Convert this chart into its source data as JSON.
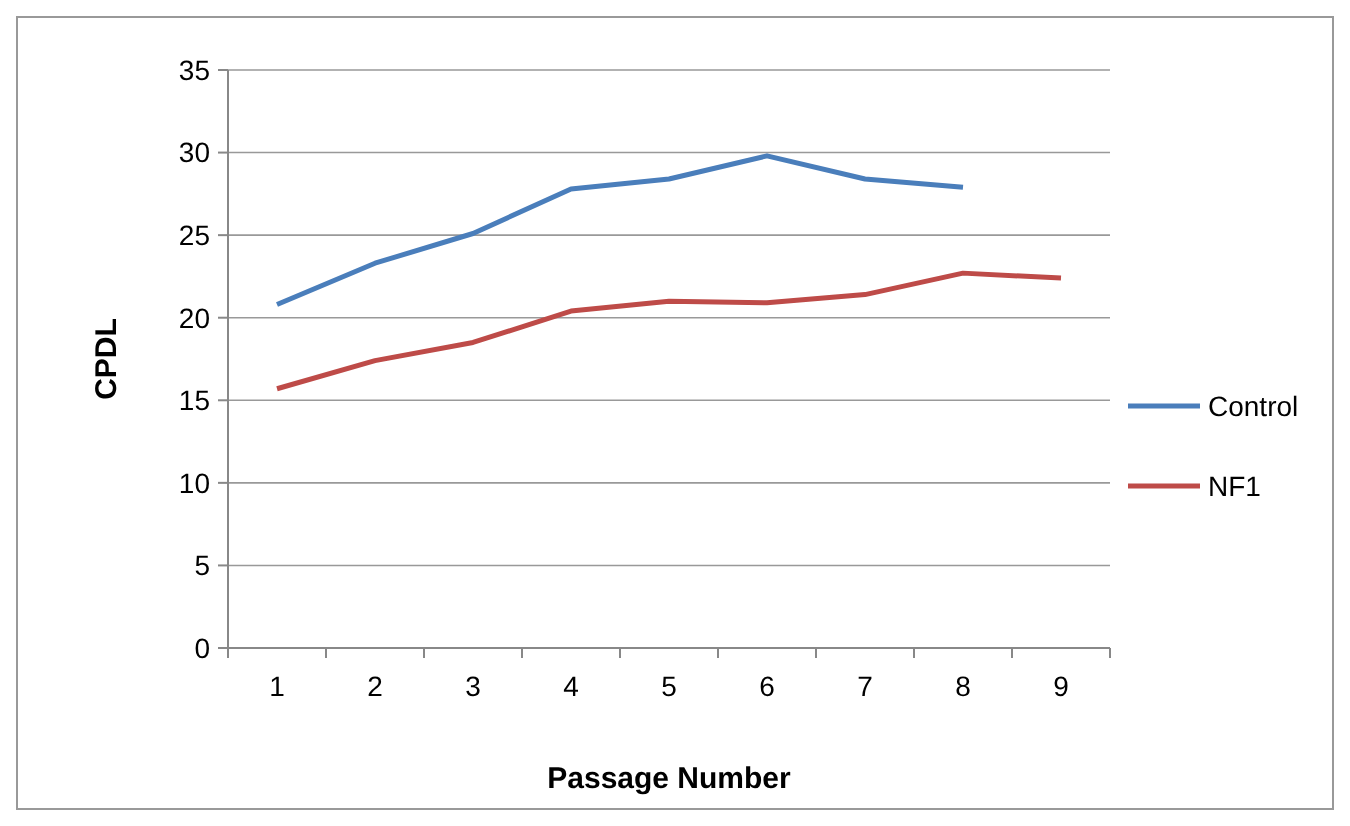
{
  "chart_data": {
    "type": "line",
    "xlabel": "Passage Number",
    "ylabel": "CPDL",
    "categories": [
      "1",
      "2",
      "3",
      "4",
      "5",
      "6",
      "7",
      "8",
      "9"
    ],
    "series": [
      {
        "name": "Control",
        "color": "#4a7ebb",
        "values": [
          20.8,
          23.3,
          25.1,
          27.8,
          28.4,
          29.8,
          28.4,
          27.9,
          null
        ]
      },
      {
        "name": "NF1",
        "color": "#be4b48",
        "values": [
          15.7,
          17.4,
          18.5,
          20.4,
          21.0,
          20.9,
          21.4,
          22.7,
          22.4
        ]
      }
    ],
    "ylim": [
      0,
      35
    ],
    "yticks": [
      0,
      5,
      10,
      15,
      20,
      25,
      30,
      35
    ],
    "grid": "y",
    "legend": "right",
    "marker": "none",
    "line_style": "solid"
  }
}
